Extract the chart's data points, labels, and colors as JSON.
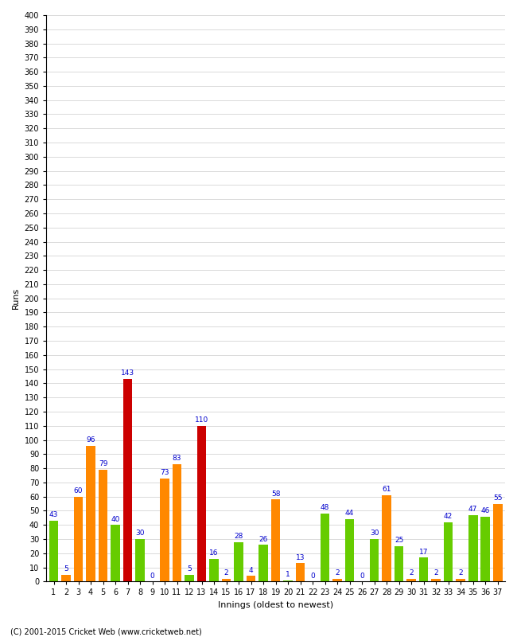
{
  "values": [
    43,
    5,
    60,
    96,
    79,
    40,
    143,
    30,
    0,
    73,
    83,
    5,
    110,
    16,
    2,
    28,
    4,
    26,
    58,
    1,
    13,
    0,
    48,
    2,
    44,
    0,
    30,
    61,
    25,
    2,
    17,
    2,
    42,
    2,
    47,
    46,
    55
  ],
  "colors": [
    "#66cc00",
    "#ff8800",
    "#ff8800",
    "#ff8800",
    "#ff8800",
    "#66cc00",
    "#cc0000",
    "#66cc00",
    "#66cc00",
    "#ff8800",
    "#ff8800",
    "#66cc00",
    "#cc0000",
    "#66cc00",
    "#ff8800",
    "#66cc00",
    "#ff8800",
    "#66cc00",
    "#ff8800",
    "#66cc00",
    "#ff8800",
    "#66cc00",
    "#66cc00",
    "#ff8800",
    "#66cc00",
    "#ff8800",
    "#66cc00",
    "#ff8800",
    "#66cc00",
    "#ff8800",
    "#66cc00",
    "#ff8800",
    "#66cc00",
    "#ff8800",
    "#66cc00",
    "#66cc00",
    "#ff8800"
  ],
  "xlabels": [
    "1",
    "2",
    "3",
    "4",
    "5",
    "6",
    "7",
    "8",
    "9",
    "10",
    "11",
    "12",
    "13",
    "14",
    "15",
    "16",
    "17",
    "18",
    "19",
    "20",
    "21",
    "22",
    "23",
    "24",
    "25",
    "26",
    "27",
    "28",
    "29",
    "30",
    "31",
    "32",
    "33",
    "34",
    "35",
    "36",
    "37"
  ],
  "title": "",
  "ylabel": "Runs",
  "xlabel": "Innings (oldest to newest)",
  "ylim_max": 400,
  "ytick_step": 10,
  "footnote": "(C) 2001-2015 Cricket Web (www.cricketweb.net)",
  "bg_color": "#ffffff",
  "grid_color": "#cccccc",
  "label_color": "#0000cc",
  "label_fontsize": 6.5,
  "bar_width": 0.75,
  "tick_fontsize": 7,
  "xlabel_fontsize": 8,
  "ylabel_fontsize": 8
}
